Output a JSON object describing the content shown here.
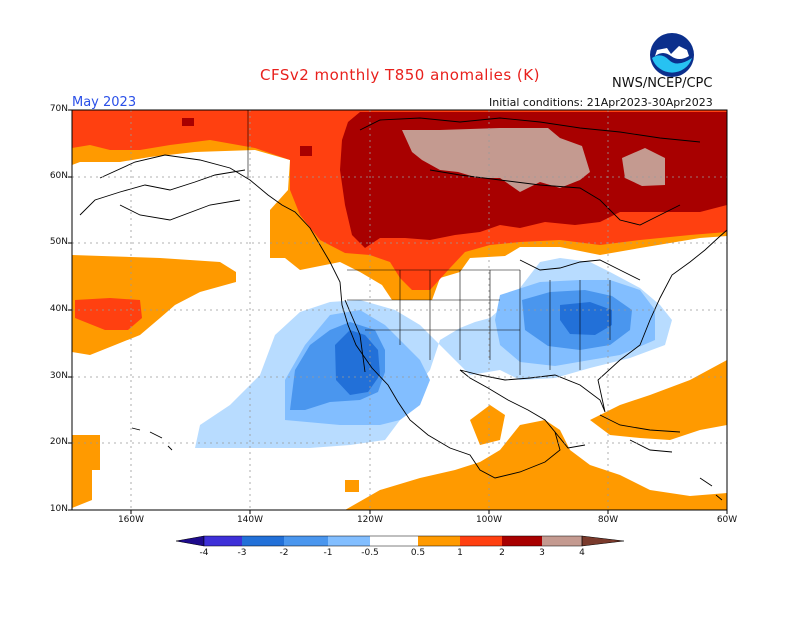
{
  "header": {
    "title": "CFSv2 monthly T850 anomalies (K)",
    "agency": "NWS/NCEP/CPC",
    "month": "May 2023",
    "init": "Initial conditions: 21Apr2023-30Apr2023"
  },
  "logo": {
    "text": "NOAA"
  },
  "map": {
    "y_ticks": [
      "70N",
      "60N",
      "50N",
      "40N",
      "30N",
      "20N",
      "10N"
    ],
    "x_ticks": [
      "160W",
      "140W",
      "120W",
      "100W",
      "80W",
      "60W"
    ]
  },
  "colorbar": {
    "levels": [
      "-4",
      "-3",
      "-2",
      "-1",
      "-0.5",
      "0.5",
      "1",
      "2",
      "3",
      "4"
    ],
    "colors": [
      "#1e0b8c",
      "#3e30d8",
      "#2270d8",
      "#4a96ee",
      "#82beff",
      "#ffffff",
      "#ff9a00",
      "#ff4010",
      "#a80000",
      "#c49a90",
      "#7a3a2c"
    ]
  }
}
